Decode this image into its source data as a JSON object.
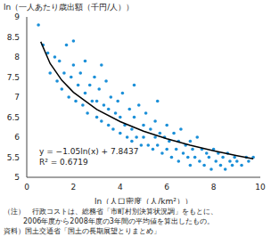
{
  "chart_data": {
    "type": "scatter",
    "ylabel": "ln（一人あたり歳出額（千円/人））",
    "xlabel": "ln（人口密度（人/km²））",
    "color": "#1a8fd8",
    "grid": false,
    "xlim": [
      0,
      10
    ],
    "xticks": [
      0,
      2,
      4,
      6,
      8,
      10
    ],
    "ylim": [
      5,
      9
    ],
    "yticks": [
      5,
      5.5,
      6,
      6.5,
      7,
      7.5,
      8,
      8.5,
      9
    ],
    "x": [
      0.5,
      0.7,
      0.9,
      1.0,
      1.2,
      1.3,
      1.4,
      1.5,
      1.6,
      1.7,
      1.8,
      1.9,
      2.0,
      2.0,
      2.1,
      2.2,
      2.3,
      2.4,
      2.5,
      2.5,
      2.6,
      2.7,
      2.8,
      2.9,
      3.0,
      3.0,
      3.1,
      3.2,
      3.2,
      3.3,
      3.4,
      3.5,
      3.5,
      3.6,
      3.7,
      3.8,
      3.9,
      4.0,
      4.0,
      4.1,
      4.2,
      4.3,
      4.4,
      4.5,
      4.5,
      4.6,
      4.6,
      4.7,
      4.8,
      4.9,
      5.0,
      5.0,
      5.1,
      5.2,
      5.3,
      5.4,
      5.5,
      5.5,
      5.6,
      5.6,
      5.7,
      5.8,
      5.9,
      6.0,
      6.0,
      6.1,
      6.2,
      6.3,
      6.4,
      6.5,
      6.5,
      6.6,
      6.7,
      6.8,
      6.9,
      7.0,
      7.0,
      7.1,
      7.2,
      7.3,
      7.4,
      7.5,
      7.6,
      7.7,
      7.8,
      7.9,
      8.0,
      8.1,
      8.2,
      8.3,
      8.4,
      8.5,
      8.6,
      8.7,
      8.8,
      8.9,
      9.0,
      9.2,
      9.4,
      9.5,
      9.7
    ],
    "values": [
      8.8,
      8.3,
      8.1,
      7.6,
      8.0,
      7.4,
      7.9,
      7.2,
      7.6,
      8.3,
      7.0,
      7.5,
      7.8,
      8.4,
      6.9,
      7.3,
      7.6,
      6.8,
      7.1,
      7.9,
      6.6,
      7.3,
      6.9,
      7.5,
      6.5,
      6.9,
      7.2,
      6.4,
      7.8,
      6.8,
      7.4,
      6.3,
      6.7,
      7.0,
      6.2,
      6.6,
      6.9,
      6.1,
      6.5,
      7.1,
      6.3,
      6.0,
      6.7,
      6.2,
      5.9,
      6.5,
      7.3,
      6.0,
      6.8,
      5.8,
      6.3,
      6.0,
      6.6,
      5.8,
      6.2,
      5.7,
      6.0,
      6.4,
      5.8,
      6.9,
      6.1,
      5.6,
      6.0,
      5.7,
      6.3,
      5.9,
      5.5,
      6.1,
      5.7,
      5.9,
      5.4,
      6.2,
      5.6,
      5.8,
      5.5,
      5.9,
      5.3,
      5.7,
      5.5,
      6.0,
      5.4,
      5.7,
      5.3,
      5.6,
      5.5,
      5.2,
      5.7,
      5.4,
      5.6,
      5.3,
      5.5,
      5.2,
      5.6,
      5.4,
      5.3,
      5.5,
      5.4,
      5.3,
      5.5,
      5.4,
      5.5
    ],
    "trendline": {
      "color": "#000000",
      "x": [
        0.6,
        1,
        1.5,
        2,
        3,
        4,
        5,
        6,
        7,
        8,
        9,
        9.7
      ],
      "values": [
        8.38,
        7.84,
        7.42,
        7.12,
        6.69,
        6.39,
        6.15,
        5.96,
        5.8,
        5.66,
        5.54,
        5.46
      ]
    },
    "annotations": [
      "y = −1.05ln(x) + 7.8437",
      "R² = 0.6719"
    ],
    "note": [
      "（注）　行政コストは、総務省「市町村別決算状況調」をもとに、",
      "2006年度から2008年度の3年間の平均値を算出したもの。"
    ],
    "source": "資料）国土交通省「国土の長期展望とりまとめ」"
  }
}
